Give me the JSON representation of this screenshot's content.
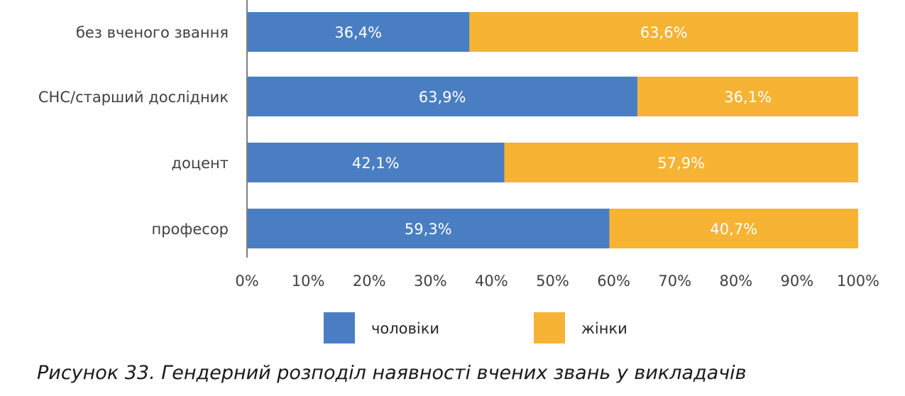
{
  "chart_data": {
    "type": "bar",
    "orientation": "horizontal",
    "stacked": true,
    "categories": [
      "без вченого звання",
      "СНС/старший дослідник",
      "доцент",
      "професор"
    ],
    "series": [
      {
        "name": "чоловіки",
        "color": "#4a7ec2",
        "values": [
          36.4,
          63.9,
          42.1,
          59.3
        ],
        "labels": [
          "36,4%",
          "63,9%",
          "42,1%",
          "59,3%"
        ]
      },
      {
        "name": "жінки",
        "color": "#f6b334",
        "values": [
          63.6,
          36.1,
          57.9,
          40.7
        ],
        "labels": [
          "63,6%",
          "36,1%",
          "57,9%",
          "40,7%"
        ]
      }
    ],
    "x_ticks": [
      "0%",
      "10%",
      "20%",
      "30%",
      "40%",
      "50%",
      "60%",
      "70%",
      "80%",
      "90%",
      "100%"
    ],
    "xlim": [
      0,
      100
    ],
    "grid": false,
    "legend_position": "bottom"
  },
  "caption": "Рисунок 33. Гендерний розподіл наявності вчених звань у викладачів"
}
